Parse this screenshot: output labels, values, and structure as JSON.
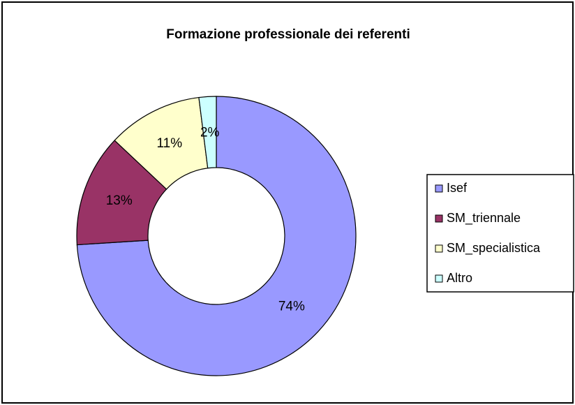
{
  "chart_data": {
    "type": "donut",
    "title": "Formazione professionale dei referenti",
    "categories": [
      "Isef",
      "SM_triennale",
      "SM_specialistica",
      "Altro"
    ],
    "values": [
      74,
      13,
      11,
      2
    ],
    "value_labels": [
      "74%",
      "13%",
      "11%",
      "2%"
    ],
    "colors": [
      "#9999ff",
      "#993366",
      "#ffffcc",
      "#ccffff"
    ],
    "legend": "right"
  }
}
